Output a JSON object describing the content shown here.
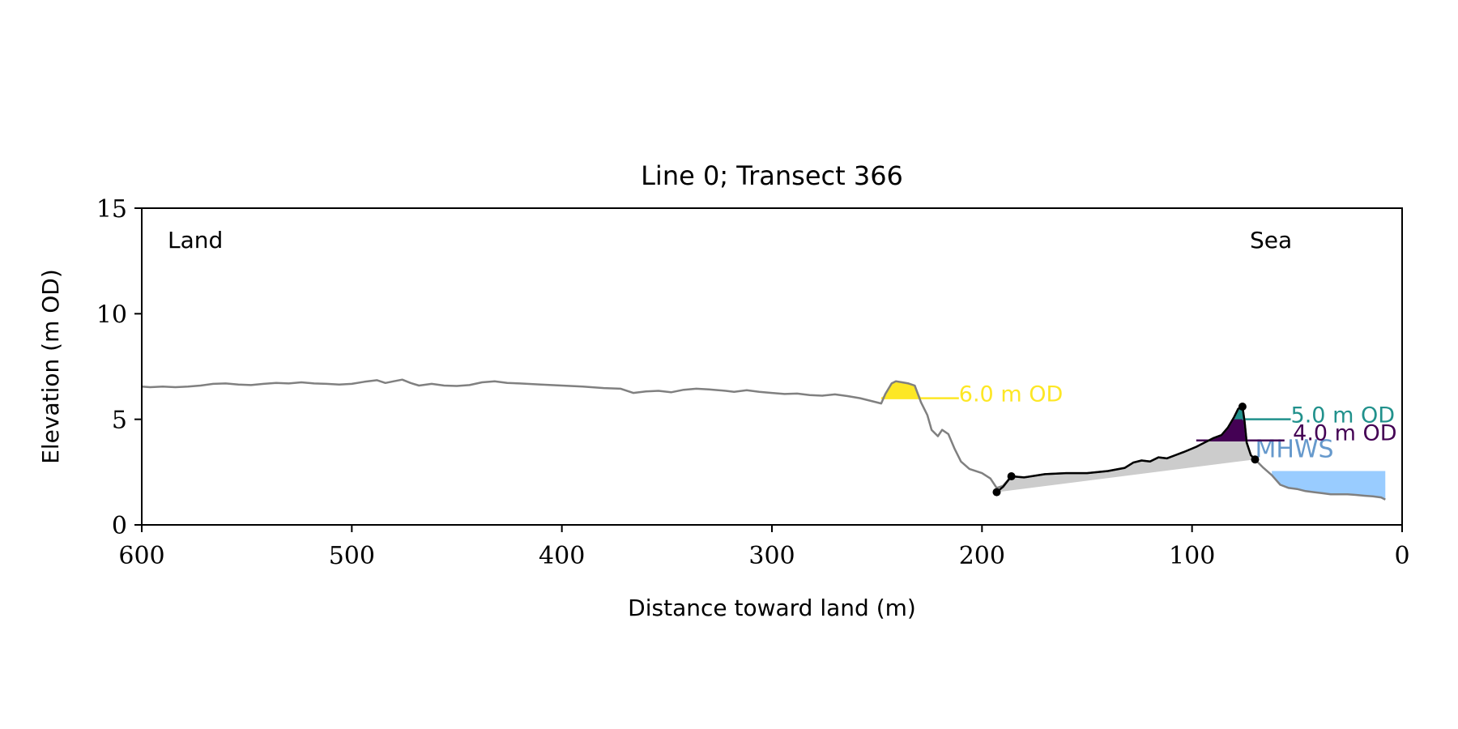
{
  "chart_data": {
    "type": "line",
    "title": "Line 0; Transect 366",
    "xlabel": "Distance toward land (m)",
    "ylabel": "Elevation (m OD)",
    "xlim": [
      600,
      0
    ],
    "ylim": [
      0,
      15
    ],
    "x_ticks": [
      600,
      500,
      400,
      300,
      200,
      100,
      0
    ],
    "y_ticks": [
      0,
      5,
      10,
      15
    ],
    "corner_labels": {
      "left": "Land",
      "right": "Sea"
    },
    "grid": false,
    "series": [
      {
        "role": "profile",
        "color": "#808080",
        "points": [
          [
            600,
            6.55
          ],
          [
            596,
            6.52
          ],
          [
            590,
            6.55
          ],
          [
            584,
            6.52
          ],
          [
            578,
            6.55
          ],
          [
            572,
            6.6
          ],
          [
            566,
            6.68
          ],
          [
            560,
            6.7
          ],
          [
            554,
            6.65
          ],
          [
            548,
            6.62
          ],
          [
            542,
            6.68
          ],
          [
            536,
            6.72
          ],
          [
            530,
            6.7
          ],
          [
            524,
            6.75
          ],
          [
            518,
            6.7
          ],
          [
            512,
            6.68
          ],
          [
            506,
            6.65
          ],
          [
            500,
            6.68
          ],
          [
            494,
            6.78
          ],
          [
            488,
            6.85
          ],
          [
            484,
            6.72
          ],
          [
            480,
            6.8
          ],
          [
            476,
            6.88
          ],
          [
            472,
            6.72
          ],
          [
            468,
            6.6
          ],
          [
            462,
            6.68
          ],
          [
            456,
            6.6
          ],
          [
            450,
            6.58
          ],
          [
            444,
            6.62
          ],
          [
            438,
            6.75
          ],
          [
            432,
            6.8
          ],
          [
            426,
            6.72
          ],
          [
            420,
            6.7
          ],
          [
            410,
            6.65
          ],
          [
            400,
            6.6
          ],
          [
            390,
            6.55
          ],
          [
            380,
            6.48
          ],
          [
            372,
            6.45
          ],
          [
            366,
            6.25
          ],
          [
            360,
            6.32
          ],
          [
            354,
            6.35
          ],
          [
            348,
            6.28
          ],
          [
            342,
            6.4
          ],
          [
            336,
            6.45
          ],
          [
            330,
            6.42
          ],
          [
            322,
            6.35
          ],
          [
            318,
            6.3
          ],
          [
            312,
            6.38
          ],
          [
            306,
            6.3
          ],
          [
            300,
            6.25
          ],
          [
            294,
            6.2
          ],
          [
            288,
            6.22
          ],
          [
            282,
            6.15
          ],
          [
            276,
            6.12
          ],
          [
            270,
            6.18
          ],
          [
            264,
            6.1
          ],
          [
            258,
            6.0
          ],
          [
            252,
            5.85
          ],
          [
            248,
            5.75
          ],
          [
            246,
            6.2
          ],
          [
            243,
            6.7
          ],
          [
            241,
            6.8
          ],
          [
            238,
            6.75
          ],
          [
            235,
            6.7
          ],
          [
            232,
            6.6
          ],
          [
            229,
            5.8
          ],
          [
            226,
            5.2
          ],
          [
            224,
            4.5
          ],
          [
            221,
            4.2
          ],
          [
            219,
            4.5
          ],
          [
            216,
            4.3
          ],
          [
            213,
            3.6
          ],
          [
            210,
            3.0
          ],
          [
            206,
            2.65
          ],
          [
            200,
            2.45
          ],
          [
            196,
            2.2
          ],
          [
            193,
            1.75
          ],
          [
            190,
            1.85
          ],
          [
            186,
            2.3
          ],
          [
            180,
            2.25
          ],
          [
            170,
            2.4
          ],
          [
            160,
            2.45
          ],
          [
            150,
            2.45
          ],
          [
            140,
            2.55
          ],
          [
            132,
            2.7
          ],
          [
            128,
            2.95
          ],
          [
            124,
            3.05
          ],
          [
            120,
            3.0
          ],
          [
            116,
            3.2
          ],
          [
            112,
            3.15
          ],
          [
            108,
            3.3
          ],
          [
            104,
            3.45
          ],
          [
            98,
            3.7
          ],
          [
            94,
            3.9
          ],
          [
            90,
            4.1
          ],
          [
            86,
            4.25
          ],
          [
            83,
            4.6
          ],
          [
            80,
            5.1
          ],
          [
            78,
            5.5
          ],
          [
            76,
            5.6
          ],
          [
            75,
            4.9
          ],
          [
            74,
            3.9
          ],
          [
            72,
            3.3
          ],
          [
            70,
            3.1
          ],
          [
            66,
            2.7
          ],
          [
            62,
            2.35
          ],
          [
            58,
            1.9
          ],
          [
            54,
            1.75
          ],
          [
            50,
            1.7
          ],
          [
            46,
            1.6
          ],
          [
            42,
            1.55
          ],
          [
            38,
            1.5
          ],
          [
            34,
            1.45
          ],
          [
            30,
            1.45
          ],
          [
            26,
            1.45
          ],
          [
            22,
            1.42
          ],
          [
            18,
            1.38
          ],
          [
            14,
            1.35
          ],
          [
            10,
            1.3
          ],
          [
            8,
            1.2
          ]
        ]
      },
      {
        "role": "dune-face",
        "color": "#000000",
        "points": [
          [
            193,
            1.55
          ],
          [
            190,
            1.8
          ],
          [
            186,
            2.3
          ],
          [
            180,
            2.25
          ],
          [
            170,
            2.4
          ],
          [
            160,
            2.45
          ],
          [
            150,
            2.45
          ],
          [
            140,
            2.55
          ],
          [
            132,
            2.7
          ],
          [
            128,
            2.95
          ],
          [
            124,
            3.05
          ],
          [
            120,
            3.0
          ],
          [
            116,
            3.2
          ],
          [
            112,
            3.15
          ],
          [
            108,
            3.3
          ],
          [
            104,
            3.45
          ],
          [
            98,
            3.7
          ],
          [
            94,
            3.9
          ],
          [
            90,
            4.1
          ],
          [
            86,
            4.25
          ],
          [
            83,
            4.6
          ],
          [
            80,
            5.1
          ],
          [
            78,
            5.5
          ],
          [
            76,
            5.6
          ],
          [
            75,
            4.9
          ],
          [
            74,
            3.9
          ],
          [
            72,
            3.3
          ],
          [
            70,
            3.1
          ]
        ],
        "markers": [
          [
            193,
            1.55
          ],
          [
            186,
            2.3
          ],
          [
            76,
            5.6
          ],
          [
            70,
            3.1
          ]
        ]
      }
    ],
    "levels": [
      {
        "label": "6.0 m OD",
        "value": 6.0,
        "color": "#fde725"
      },
      {
        "label": "5.0 m OD",
        "value": 5.0,
        "color": "#21918c"
      },
      {
        "label": "4.0 m OD",
        "value": 4.0,
        "color": "#440154"
      }
    ],
    "mhws": {
      "label": "MHWS",
      "value": 2.55,
      "color": "#99ccff",
      "text_color": "#6699cc",
      "x_range": [
        8,
        62
      ]
    },
    "fill_colors": {
      "above_level": "#fde725",
      "level_5": "#21918c",
      "level_4": "#440154",
      "dune_volume": "#cccccc"
    }
  }
}
